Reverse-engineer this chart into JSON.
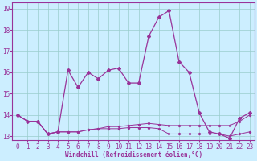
{
  "xlabel": "Windchill (Refroidissement éolien,°C)",
  "ylabel": "",
  "bg_color": "#cceeff",
  "line_color": "#993399",
  "grid_color": "#99cccc",
  "xlim": [
    -0.5,
    23.5
  ],
  "ylim": [
    12.8,
    19.3
  ],
  "yticks": [
    13,
    14,
    15,
    16,
    17,
    18,
    19
  ],
  "xticks": [
    0,
    1,
    2,
    3,
    4,
    5,
    6,
    7,
    8,
    9,
    10,
    11,
    12,
    13,
    14,
    15,
    16,
    17,
    18,
    19,
    20,
    21,
    22,
    23
  ],
  "line1": [
    14.0,
    13.7,
    13.7,
    13.1,
    13.2,
    13.2,
    13.2,
    13.3,
    13.35,
    13.35,
    13.35,
    13.4,
    13.4,
    13.4,
    13.35,
    13.1,
    13.1,
    13.1,
    13.1,
    13.1,
    13.1,
    13.0,
    13.1,
    13.2
  ],
  "line2": [
    14.0,
    13.7,
    13.7,
    13.1,
    13.2,
    13.2,
    13.2,
    13.3,
    13.35,
    13.45,
    13.45,
    13.5,
    13.55,
    13.6,
    13.55,
    13.5,
    13.5,
    13.5,
    13.5,
    13.5,
    13.5,
    13.5,
    13.7,
    14.0
  ],
  "line3": [
    14.0,
    13.7,
    13.7,
    13.1,
    13.2,
    16.1,
    15.3,
    16.0,
    15.7,
    16.1,
    16.2,
    15.5,
    15.5,
    17.7,
    18.6,
    18.9,
    16.5,
    16.0,
    14.1,
    13.2,
    13.1,
    12.9,
    13.85,
    14.1
  ],
  "tick_fontsize": 5.5,
  "xlabel_fontsize": 5.5
}
